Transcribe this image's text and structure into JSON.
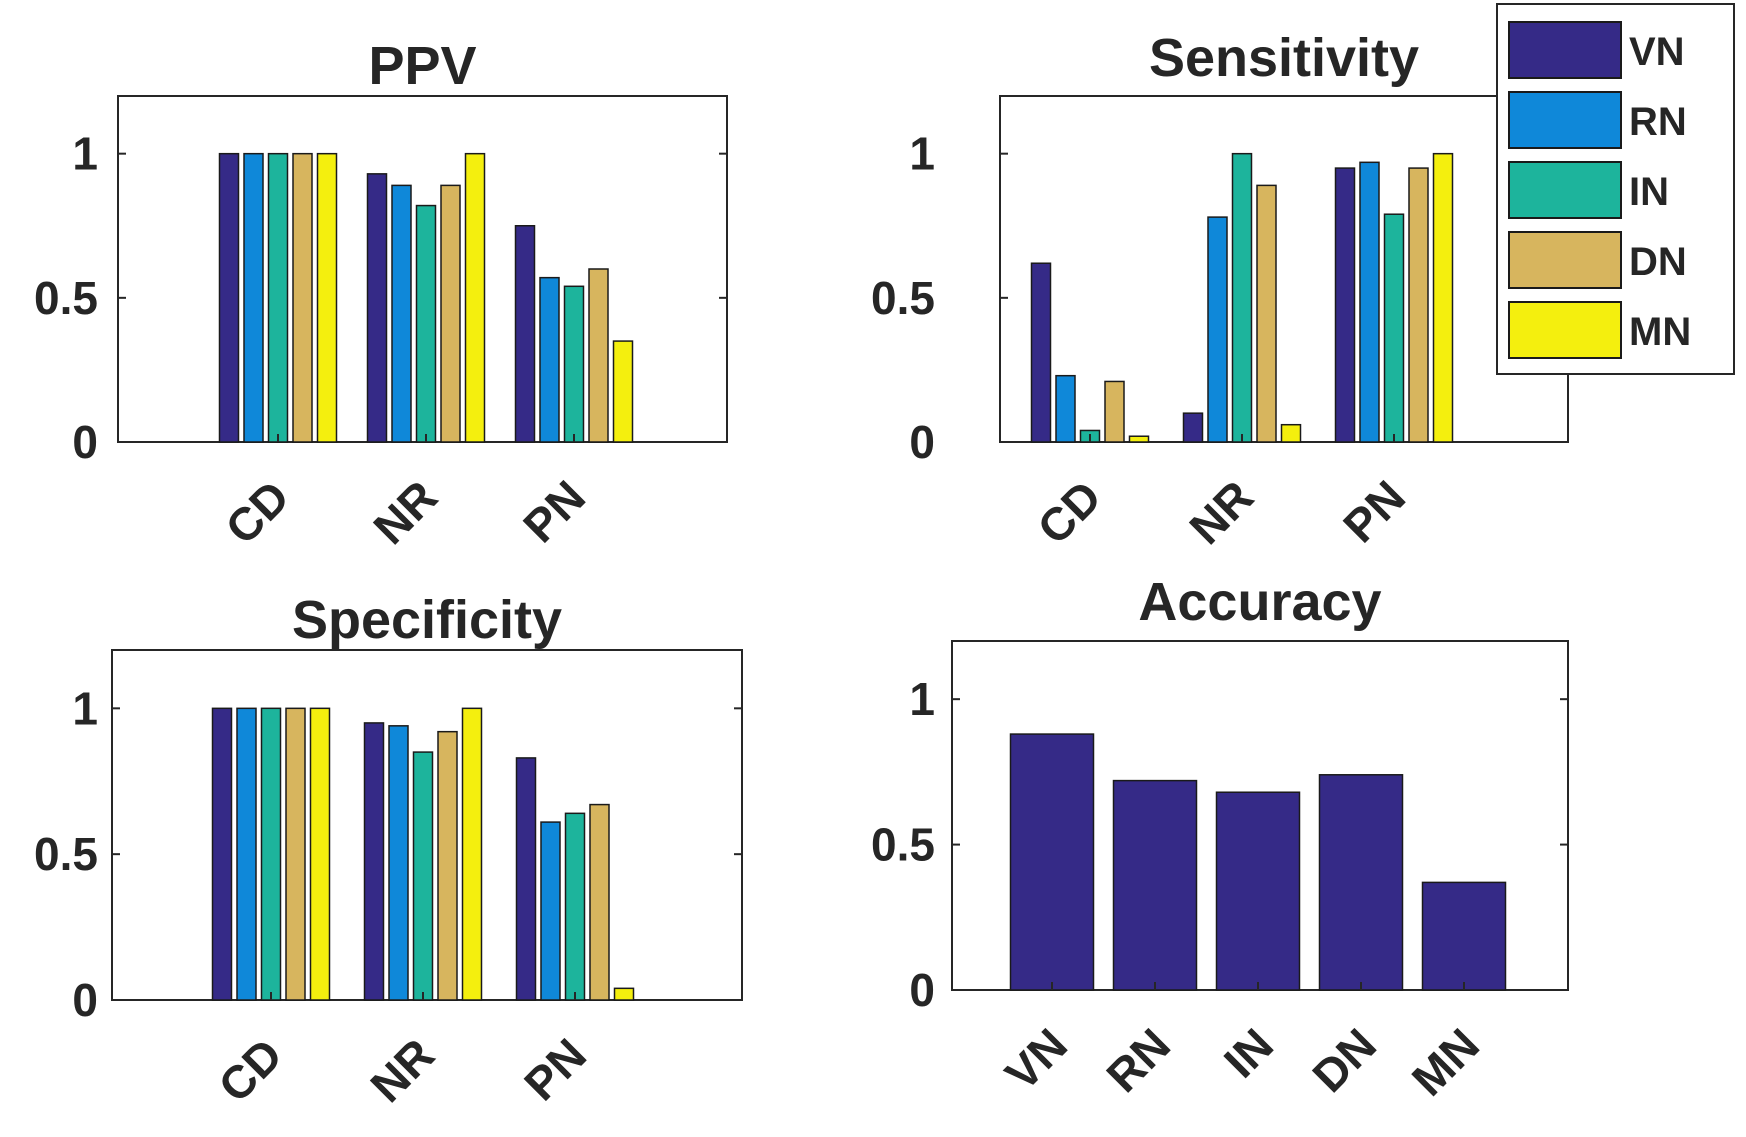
{
  "chart_data": [
    {
      "id": "ppv",
      "type": "bar",
      "title": "PPV",
      "categories": [
        "CD",
        "NR",
        "PN"
      ],
      "ylim": [
        0,
        1.2
      ],
      "yticks": [
        0,
        0.5,
        1
      ],
      "ytick_labels": [
        "0",
        "0.5",
        "1"
      ],
      "series": [
        {
          "name": "VN",
          "values": [
            1.0,
            0.93,
            0.75
          ]
        },
        {
          "name": "RN",
          "values": [
            1.0,
            0.89,
            0.57
          ]
        },
        {
          "name": "IN",
          "values": [
            1.0,
            0.82,
            0.54
          ]
        },
        {
          "name": "DN",
          "values": [
            1.0,
            0.89,
            0.6
          ]
        },
        {
          "name": "MN",
          "values": [
            1.0,
            1.0,
            0.35
          ]
        }
      ]
    },
    {
      "id": "sensitivity",
      "type": "bar",
      "title": "Sensitivity",
      "categories": [
        "CD",
        "NR",
        "PN"
      ],
      "ylim": [
        0,
        1.2
      ],
      "yticks": [
        0,
        0.5,
        1
      ],
      "ytick_labels": [
        "0",
        "0.5",
        "1"
      ],
      "series": [
        {
          "name": "VN",
          "values": [
            0.62,
            0.1,
            0.95
          ]
        },
        {
          "name": "RN",
          "values": [
            0.23,
            0.78,
            0.97
          ]
        },
        {
          "name": "IN",
          "values": [
            0.04,
            1.0,
            0.79
          ]
        },
        {
          "name": "DN",
          "values": [
            0.21,
            0.89,
            0.95
          ]
        },
        {
          "name": "MN",
          "values": [
            0.02,
            0.06,
            1.0
          ]
        }
      ]
    },
    {
      "id": "specificity",
      "type": "bar",
      "title": "Specificity",
      "categories": [
        "CD",
        "NR",
        "PN"
      ],
      "ylim": [
        0,
        1.2
      ],
      "yticks": [
        0,
        0.5,
        1
      ],
      "ytick_labels": [
        "0",
        "0.5",
        "1"
      ],
      "series": [
        {
          "name": "VN",
          "values": [
            1.0,
            0.95,
            0.83
          ]
        },
        {
          "name": "RN",
          "values": [
            1.0,
            0.94,
            0.61
          ]
        },
        {
          "name": "IN",
          "values": [
            1.0,
            0.85,
            0.64
          ]
        },
        {
          "name": "DN",
          "values": [
            1.0,
            0.92,
            0.67
          ]
        },
        {
          "name": "MN",
          "values": [
            1.0,
            1.0,
            0.04
          ]
        }
      ]
    },
    {
      "id": "accuracy",
      "type": "bar",
      "title": "Accuracy",
      "categories": [
        "VN",
        "RN",
        "IN",
        "DN",
        "MN"
      ],
      "ylim": [
        0,
        1.2
      ],
      "yticks": [
        0,
        0.5,
        1
      ],
      "ytick_labels": [
        "0",
        "0.5",
        "1"
      ],
      "values": [
        0.88,
        0.72,
        0.68,
        0.74,
        0.37
      ]
    }
  ],
  "legend": {
    "position": "top-right",
    "entries": [
      {
        "label": "VN",
        "color": "#352a87"
      },
      {
        "label": "RN",
        "color": "#0f88d9"
      },
      {
        "label": "IN",
        "color": "#1db49c"
      },
      {
        "label": "DN",
        "color": "#d7b55e"
      },
      {
        "label": "MN",
        "color": "#f4ef0e"
      }
    ]
  },
  "colors": {
    "accuracy_bar": "#352a87",
    "axis": "#262626",
    "bar_edge": "#1a1a1a"
  }
}
